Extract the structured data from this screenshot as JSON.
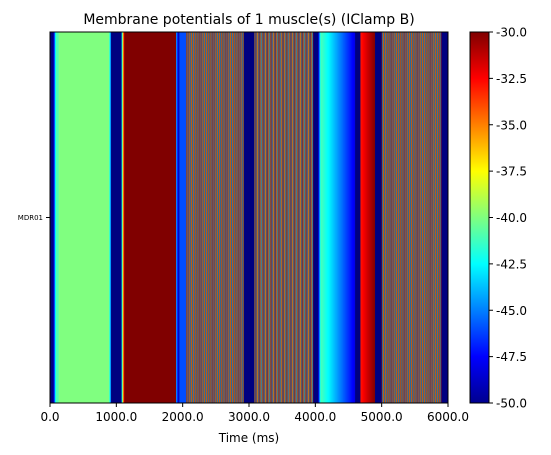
{
  "chart_data": {
    "type": "heatmap",
    "title": "Membrane potentials of 1 muscle(s) (IClamp B)",
    "xlabel": "Time (ms)",
    "ylabel": "",
    "xlim": [
      0,
      6000
    ],
    "x_ticks": [
      "0.0",
      "1000.0",
      "2000.0",
      "3000.0",
      "4000.0",
      "5000.0",
      "6000.0"
    ],
    "y_categories": [
      "MDR01"
    ],
    "colormap": "jet",
    "clim": [
      -50,
      -30
    ],
    "colorbar_ticks": [
      "-30.0",
      "-32.5",
      "-35.0",
      "-37.5",
      "-40.0",
      "-42.5",
      "-45.0",
      "-47.5",
      "-50.0"
    ],
    "colorbar_tick_values": [
      -30,
      -32.5,
      -35,
      -37.5,
      -40,
      -42.5,
      -45,
      -47.5,
      -50
    ],
    "segments": [
      {
        "t0": 0,
        "t1": 50,
        "mode": "const",
        "v": -50
      },
      {
        "t0": 50,
        "t1": 90,
        "mode": "ramp",
        "v0": -50,
        "v1": -41
      },
      {
        "t0": 90,
        "t1": 130,
        "mode": "const",
        "v": -41
      },
      {
        "t0": 130,
        "t1": 890,
        "mode": "const",
        "v": -40
      },
      {
        "t0": 890,
        "t1": 920,
        "mode": "ramp",
        "v0": -40,
        "v1": -46
      },
      {
        "t0": 920,
        "t1": 1080,
        "mode": "const",
        "v": -50
      },
      {
        "t0": 1080,
        "t1": 1120,
        "mode": "ramp",
        "v0": -45,
        "v1": -30
      },
      {
        "t0": 1120,
        "t1": 1900,
        "mode": "const",
        "v": -30
      },
      {
        "t0": 1900,
        "t1": 1950,
        "mode": "ramp",
        "v0": -44,
        "v1": -50
      },
      {
        "t0": 1950,
        "t1": 2050,
        "mode": "const",
        "v": -46
      },
      {
        "t0": 2050,
        "t1": 2920,
        "mode": "osc",
        "period": 28
      },
      {
        "t0": 2920,
        "t1": 3080,
        "mode": "const",
        "v": -50
      },
      {
        "t0": 3080,
        "t1": 3970,
        "mode": "osc",
        "period": 24
      },
      {
        "t0": 3970,
        "t1": 4040,
        "mode": "const",
        "v": -50
      },
      {
        "t0": 4040,
        "t1": 4080,
        "mode": "ramp",
        "v0": -50,
        "v1": -41
      },
      {
        "t0": 4080,
        "t1": 4600,
        "mode": "ramp",
        "v0": -41,
        "v1": -48
      },
      {
        "t0": 4600,
        "t1": 4680,
        "mode": "const",
        "v": -50
      },
      {
        "t0": 4680,
        "t1": 4900,
        "mode": "ramp",
        "v0": -33,
        "v1": -30
      },
      {
        "t0": 4900,
        "t1": 5000,
        "mode": "const",
        "v": -50
      },
      {
        "t0": 5000,
        "t1": 5900,
        "mode": "osc",
        "period": 28
      },
      {
        "t0": 5900,
        "t1": 6000,
        "mode": "const",
        "v": -50
      }
    ],
    "grid": false
  }
}
